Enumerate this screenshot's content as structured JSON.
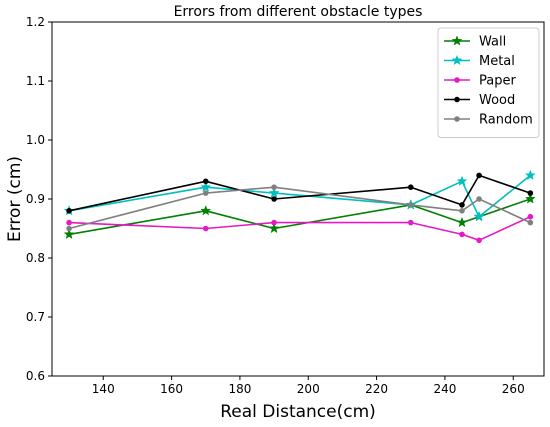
{
  "chart_data": {
    "type": "line",
    "title": "Errors from different obstacle types",
    "xlabel": "Real Distance(cm)",
    "ylabel": "Error (cm)",
    "xlim": [
      125,
      269
    ],
    "ylim": [
      0.6,
      1.2
    ],
    "xticks": [
      140,
      160,
      180,
      200,
      220,
      240,
      260
    ],
    "yticks": [
      0.6,
      0.7,
      0.8,
      0.9,
      1.0,
      1.1,
      1.2
    ],
    "grid": false,
    "legend_position": "top-right",
    "series": [
      {
        "name": "Wall",
        "color": "#008000",
        "marker": "star",
        "x": [
          130,
          170,
          190,
          230,
          245,
          250,
          265
        ],
        "y": [
          0.84,
          0.88,
          0.85,
          0.89,
          0.86,
          0.87,
          0.9
        ]
      },
      {
        "name": "Metal",
        "color": "#00BFBF",
        "marker": "star",
        "x": [
          130,
          170,
          190,
          230,
          245,
          250,
          265
        ],
        "y": [
          0.88,
          0.92,
          0.91,
          0.89,
          0.93,
          0.87,
          0.94
        ]
      },
      {
        "name": "Paper",
        "color": "#E619C6",
        "marker": "dot",
        "x": [
          130,
          170,
          190,
          230,
          245,
          250,
          265
        ],
        "y": [
          0.86,
          0.85,
          0.86,
          0.86,
          0.84,
          0.83,
          0.87
        ]
      },
      {
        "name": "Wood",
        "color": "#000000",
        "marker": "dot",
        "x": [
          130,
          170,
          190,
          230,
          245,
          250,
          265
        ],
        "y": [
          0.88,
          0.93,
          0.9,
          0.92,
          0.89,
          0.94,
          0.91
        ]
      },
      {
        "name": "Random",
        "color": "#808080",
        "marker": "dot",
        "x": [
          130,
          170,
          190,
          230,
          245,
          250,
          265
        ],
        "y": [
          0.85,
          0.91,
          0.92,
          0.89,
          0.88,
          0.9,
          0.86
        ]
      }
    ]
  }
}
